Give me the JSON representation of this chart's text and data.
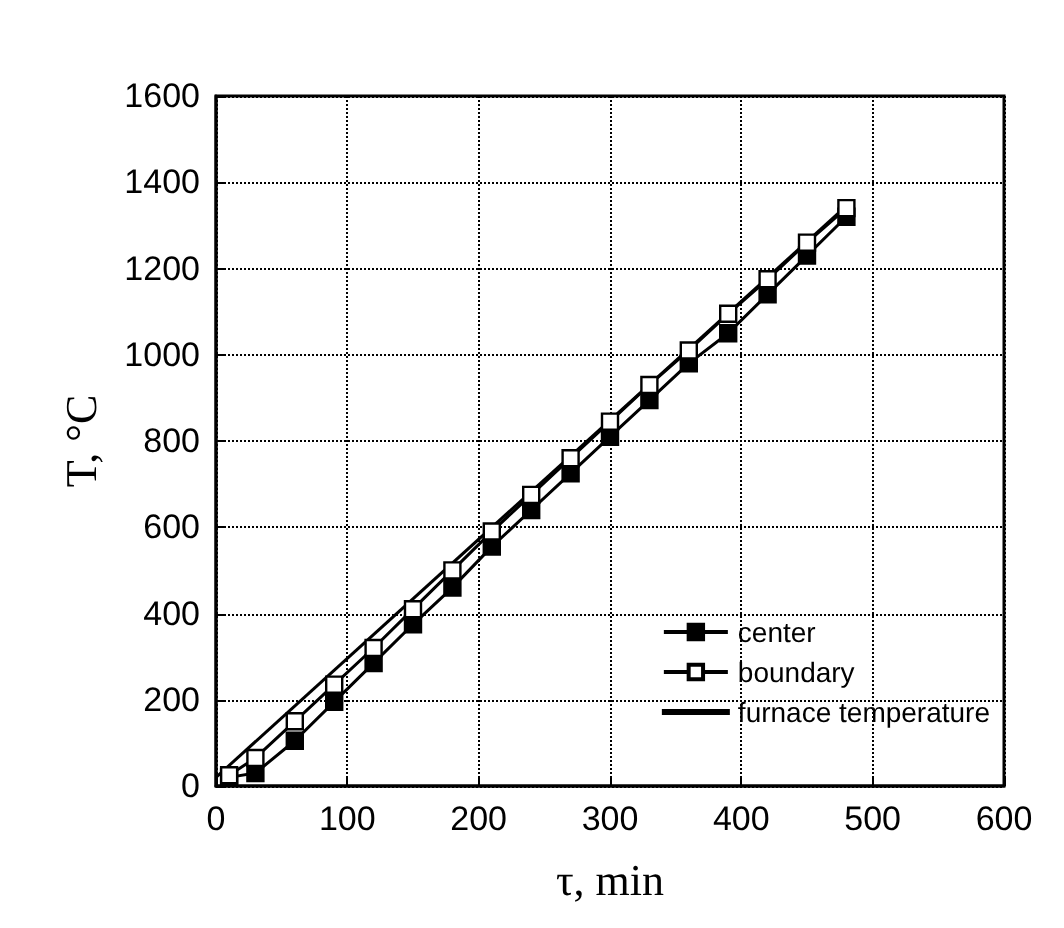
{
  "chart_data": {
    "type": "line",
    "xlabel": "τ, min",
    "ylabel": "T, °C",
    "xlim": [
      0,
      600
    ],
    "ylim": [
      0,
      1600
    ],
    "xticks": [
      0,
      100,
      200,
      300,
      400,
      500,
      600
    ],
    "yticks": [
      0,
      200,
      400,
      600,
      800,
      1000,
      1200,
      1400,
      1600
    ],
    "grid": true,
    "legend": "bottom right",
    "x": [
      10,
      30,
      60,
      90,
      120,
      150,
      180,
      210,
      240,
      270,
      300,
      330,
      360,
      390,
      420,
      450,
      480
    ],
    "series": [
      {
        "name": "center",
        "color": "#000000",
        "marker": "square",
        "values": [
          20,
          30,
          105,
          195,
          285,
          375,
          460,
          555,
          640,
          725,
          810,
          895,
          980,
          1050,
          1140,
          1230,
          1320
        ]
      },
      {
        "name": "boundary",
        "color": "#000000",
        "marker": "square",
        "values": [
          25,
          65,
          150,
          235,
          320,
          410,
          500,
          590,
          675,
          760,
          845,
          930,
          1010,
          1095,
          1175,
          1260,
          1340
        ]
      },
      {
        "name": "furnace temperature",
        "color": "#000000",
        "marker": "none",
        "x": [
          0,
          480
        ],
        "values": [
          20,
          1345
        ]
      }
    ]
  }
}
